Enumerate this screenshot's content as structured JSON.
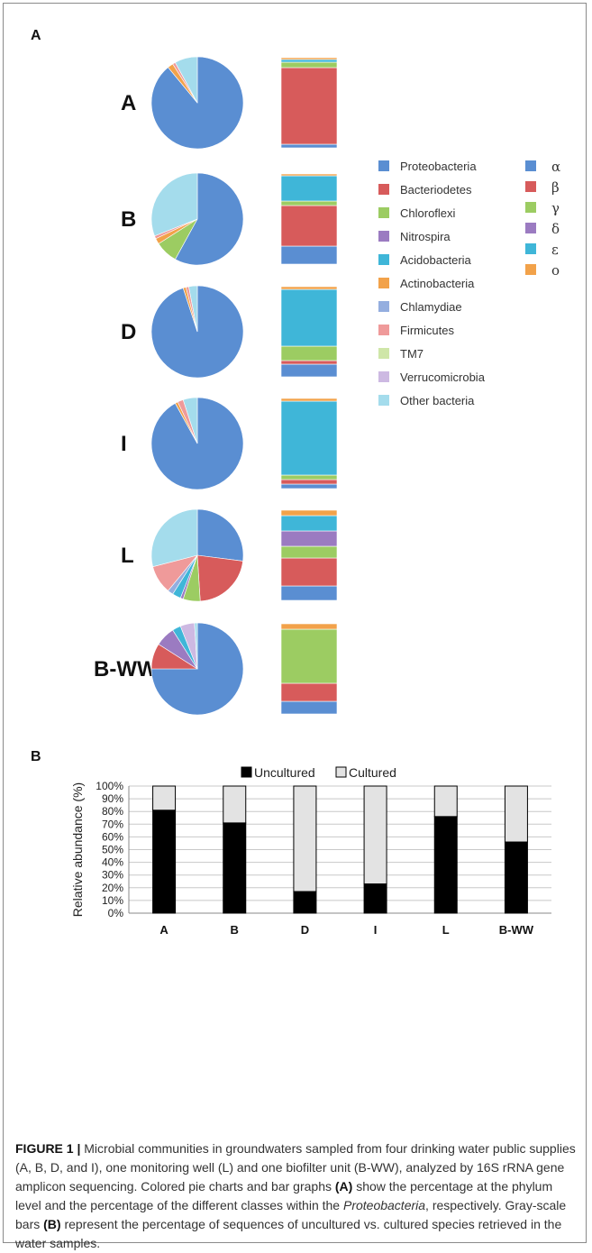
{
  "panel_labels": {
    "a": "A",
    "b": "B"
  },
  "chart_data": [
    {
      "type": "pie",
      "panel": "A",
      "samples": [
        "A",
        "B",
        "D",
        "I",
        "L",
        "B-WW"
      ],
      "phylum_legend": [
        {
          "name": "Proteobacteria",
          "color": "#5a8ed2"
        },
        {
          "name": "Bacteriodetes",
          "color": "#d75b5b"
        },
        {
          "name": "Chloroflexi",
          "color": "#9ccc62"
        },
        {
          "name": "Nitrospira",
          "color": "#9b7bc1"
        },
        {
          "name": "Acidobacteria",
          "color": "#3fb6d8"
        },
        {
          "name": "Actinobacteria",
          "color": "#f2a24a"
        },
        {
          "name": "Chlamydiae",
          "color": "#94aedf"
        },
        {
          "name": "Firmicutes",
          "color": "#ef9a9a"
        },
        {
          "name": "TM7",
          "color": "#cfe6a8"
        },
        {
          "name": "Verrucomicrobia",
          "color": "#cdb9e2"
        },
        {
          "name": "Other bacteria",
          "color": "#a4dcec"
        }
      ],
      "pies": [
        {
          "sample": "A",
          "values": [
            89,
            0,
            0,
            0,
            0,
            2,
            0,
            1,
            0,
            0,
            8
          ]
        },
        {
          "sample": "B",
          "values": [
            58,
            0,
            8,
            0,
            0,
            2,
            0,
            1,
            0,
            0,
            31
          ]
        },
        {
          "sample": "D",
          "values": [
            95,
            0,
            0,
            0,
            0,
            1,
            0,
            1,
            0,
            0,
            3
          ]
        },
        {
          "sample": "I",
          "values": [
            92,
            0,
            0,
            0,
            0,
            1,
            0,
            2,
            0,
            0,
            5
          ]
        },
        {
          "sample": "L",
          "values": [
            27,
            22,
            6,
            1,
            3,
            0,
            2,
            10,
            0,
            0,
            29
          ]
        },
        {
          "sample": "B-WW",
          "values": [
            75,
            9,
            0,
            7,
            3,
            0,
            0,
            0,
            0,
            5,
            1
          ]
        }
      ]
    },
    {
      "type": "bar",
      "stacked": true,
      "panel": "A",
      "samples": [
        "A",
        "B",
        "D",
        "I",
        "L",
        "B-WW"
      ],
      "class_legend": [
        {
          "name": "α",
          "color": "#5a8ed2"
        },
        {
          "name": "β",
          "color": "#d75b5b"
        },
        {
          "name": "γ",
          "color": "#9ccc62"
        },
        {
          "name": "δ",
          "color": "#9b7bc1"
        },
        {
          "name": "ε",
          "color": "#3fb6d8"
        },
        {
          "name": "o",
          "color": "#f2a24a"
        }
      ],
      "bars": [
        {
          "sample": "A",
          "values": [
            4,
            85,
            6,
            0,
            3,
            2
          ]
        },
        {
          "sample": "B",
          "values": [
            20,
            45,
            5,
            0,
            28,
            2
          ]
        },
        {
          "sample": "D",
          "values": [
            14,
            4,
            16,
            0,
            63,
            3
          ]
        },
        {
          "sample": "I",
          "values": [
            5,
            5,
            5,
            0,
            82,
            3
          ]
        },
        {
          "sample": "L",
          "values": [
            16,
            31,
            13,
            17,
            17,
            6
          ]
        },
        {
          "sample": "B-WW",
          "values": [
            14,
            20,
            60,
            0,
            0,
            6
          ]
        }
      ]
    },
    {
      "type": "bar",
      "stacked": true,
      "panel": "B",
      "categories": [
        "A",
        "B",
        "D",
        "I",
        "L",
        "B-WW"
      ],
      "series": [
        {
          "name": "Uncultured",
          "color": "#000000",
          "values": [
            81,
            71,
            17,
            23,
            76,
            56
          ]
        },
        {
          "name": "Cultured",
          "color": "#e3e3e3",
          "values": [
            19,
            29,
            83,
            77,
            24,
            44
          ]
        }
      ],
      "ylabel": "Relative abundance (%)",
      "ylim": [
        0,
        100
      ],
      "yticks": [
        "0%",
        "10%",
        "20%",
        "30%",
        "40%",
        "50%",
        "60%",
        "70%",
        "80%",
        "90%",
        "100%"
      ],
      "legend_position": "top-center",
      "grid": true
    }
  ],
  "caption": {
    "label": "FIGURE 1 |",
    "text_1": " Microbial communities in groundwaters sampled from four drinking water public supplies (A, B, D, and I), one monitoring well (L) and one biofilter unit (B-WW), analyzed by 16S rRNA gene amplicon sequencing. Colored pie charts and bar graphs ",
    "ref_a": "(A)",
    "text_2": " show the percentage at the phylum level and the percentage of the different classes within the ",
    "italic_term": "Proteobacteria",
    "text_3": ", respectively. Gray-scale bars ",
    "ref_b": "(B)",
    "text_4": " represent the percentage of sequences of uncultured vs. cultured species retrieved in the water samples."
  }
}
